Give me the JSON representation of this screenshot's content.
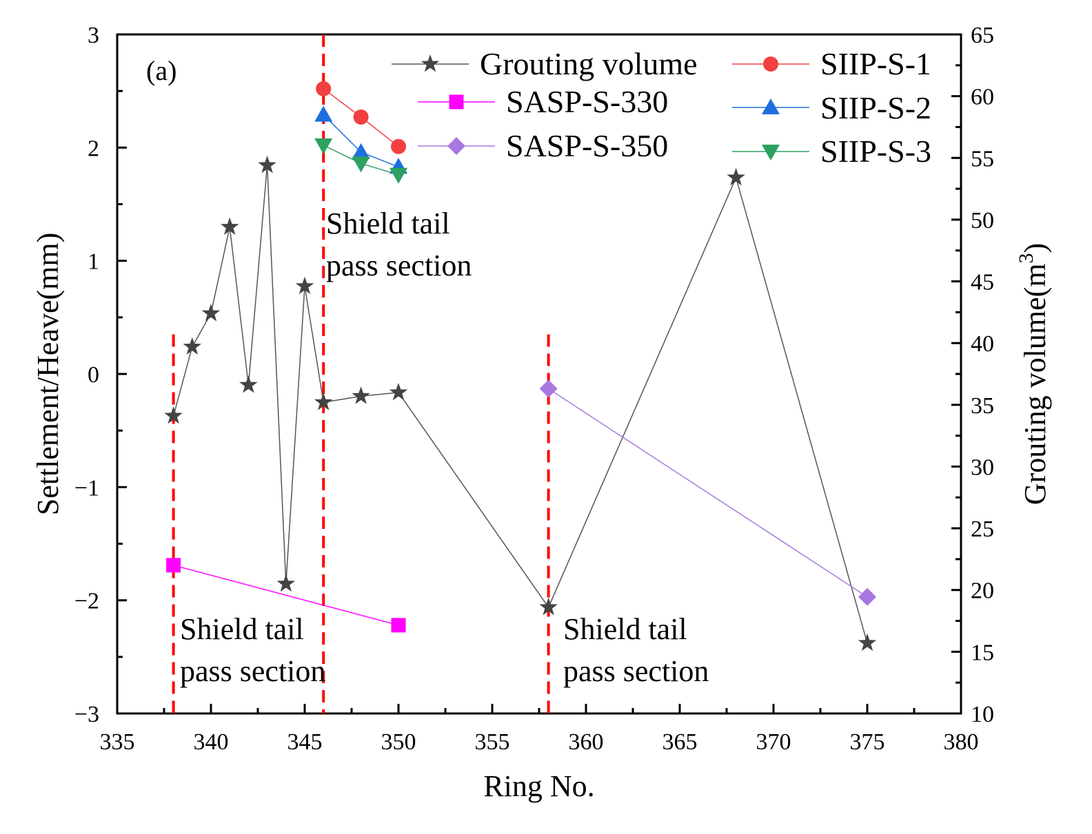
{
  "chart_data": {
    "type": "line",
    "panel_label": "(a)",
    "xlabel": "Ring No.",
    "ylabel_left": "Settlement/Heave(mm)",
    "ylabel_right_base": "Grouting volume(m",
    "ylabel_right_sup": "3",
    "ylabel_right_close": ")",
    "xlim": [
      335,
      380
    ],
    "ylim_left": [
      -3,
      3
    ],
    "ylim_right": [
      10,
      65
    ],
    "x_ticks": [
      335,
      340,
      345,
      350,
      355,
      360,
      365,
      370,
      375,
      380
    ],
    "y_ticks_left": [
      -3,
      -2,
      -1,
      0,
      1,
      2,
      3
    ],
    "y_tick_labels_left": [
      "−3",
      "−2",
      "−1",
      "0",
      "1",
      "2",
      "3"
    ],
    "y_ticks_right": [
      10,
      15,
      20,
      25,
      30,
      35,
      40,
      45,
      50,
      55,
      60,
      65
    ],
    "grid": false,
    "series": [
      {
        "name": "Grouting volume",
        "axis": "right",
        "marker": "star",
        "color": "#444444",
        "line_color": "#555555",
        "x": [
          338,
          339,
          340,
          341,
          342,
          343,
          344,
          345,
          346,
          348,
          350,
          358,
          368,
          375
        ],
        "y": [
          34.1,
          39.7,
          42.4,
          49.4,
          36.6,
          54.4,
          20.5,
          44.6,
          35.2,
          35.7,
          36.0,
          18.6,
          53.4,
          15.7
        ]
      },
      {
        "name": "SIIP-S-1",
        "axis": "left",
        "marker": "circle",
        "color": "#f24040",
        "line_color": "#f24040",
        "x": [
          346,
          348,
          350
        ],
        "y": [
          2.52,
          2.27,
          2.01
        ]
      },
      {
        "name": "SASP-S-330",
        "axis": "left",
        "marker": "square",
        "color": "#ff00ff",
        "line_color": "#ff00ff",
        "x": [
          338,
          350
        ],
        "y": [
          -1.69,
          -2.22
        ]
      },
      {
        "name": "SIIP-S-2",
        "axis": "left",
        "marker": "triangle-up",
        "color": "#1e6fe0",
        "line_color": "#1e6fe0",
        "x": [
          346,
          348,
          350
        ],
        "y": [
          2.29,
          1.96,
          1.83
        ]
      },
      {
        "name": "SASP-S-350",
        "axis": "left",
        "marker": "diamond",
        "color": "#a878e0",
        "line_color": "#a878e0",
        "x": [
          358,
          375
        ],
        "y": [
          -0.13,
          -1.97
        ]
      },
      {
        "name": "SIIP-S-3",
        "axis": "left",
        "marker": "triangle-down",
        "color": "#2ea060",
        "line_color": "#2ea060",
        "x": [
          346,
          348,
          350
        ],
        "y": [
          2.02,
          1.86,
          1.76
        ]
      }
    ],
    "legend_placement": "top-right",
    "legend_order": [
      "Grouting volume",
      "SIIP-S-1",
      "SASP-S-330",
      "SIIP-S-2",
      "SASP-S-350",
      "SIIP-S-3"
    ],
    "reference_lines": [
      {
        "x": 338,
        "y_top": 0.35,
        "color": "#ff0000",
        "style": "dashed"
      },
      {
        "x": 346,
        "y_top": 3,
        "color": "#ff0000",
        "style": "dashed"
      },
      {
        "x": 358,
        "y_top": 0.35,
        "color": "#ff0000",
        "style": "dashed"
      }
    ],
    "annotations": [
      {
        "line1": "Shield tail",
        "line2": "pass section",
        "near_x": 346,
        "near_y": 1.1
      },
      {
        "line1": "Shield tail",
        "line2": "pass section",
        "near_x": 338,
        "near_y": -2.4
      },
      {
        "line1": "Shield tail",
        "line2": "pass section",
        "near_x": 358,
        "near_y": -2.4
      }
    ]
  }
}
